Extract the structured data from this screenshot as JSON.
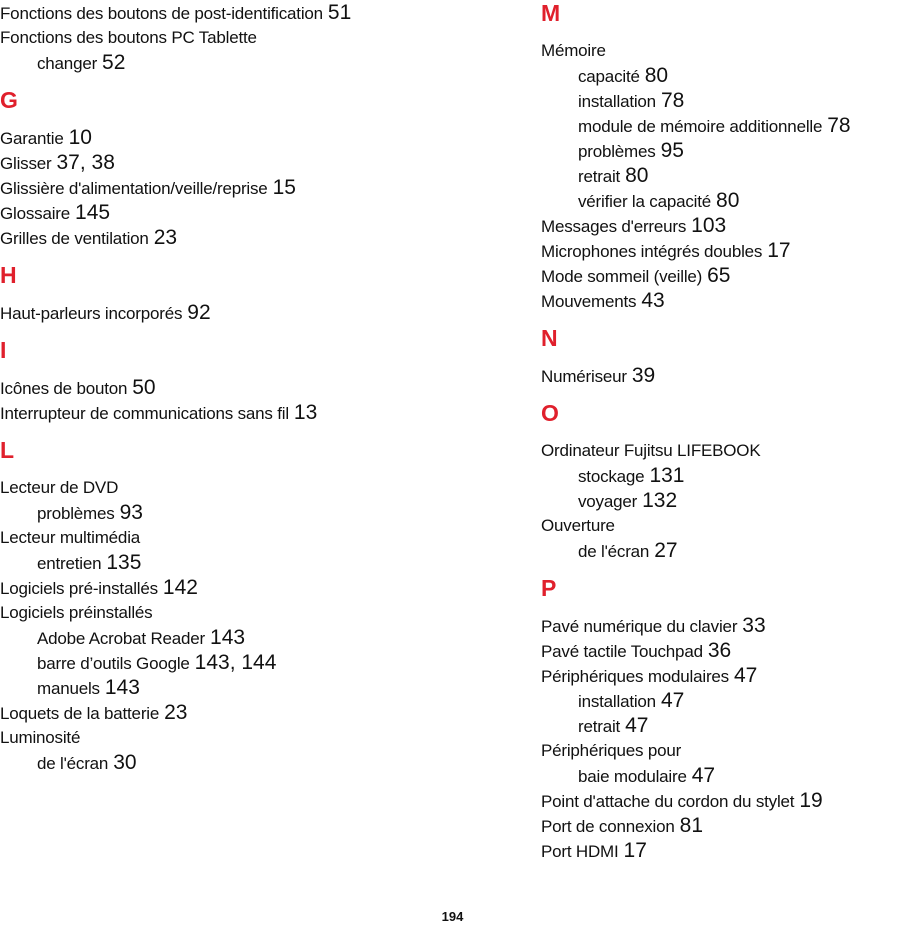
{
  "left_column": [
    {
      "type": "entry",
      "level": 0,
      "text": "Fonctions des boutons de post-identification",
      "pages": "51"
    },
    {
      "type": "entry",
      "level": 0,
      "text": "Fonctions des boutons PC Tablette",
      "pages": ""
    },
    {
      "type": "entry",
      "level": 1,
      "text": "changer",
      "pages": "52"
    },
    {
      "type": "letter",
      "text": "G"
    },
    {
      "type": "entry",
      "level": 0,
      "text": "Garantie",
      "pages": "10"
    },
    {
      "type": "entry",
      "level": 0,
      "text": "Glisser",
      "pages": "37, 38"
    },
    {
      "type": "entry",
      "level": 0,
      "text": "Glissière d'alimentation/veille/reprise",
      "pages": "15"
    },
    {
      "type": "entry",
      "level": 0,
      "text": "Glossaire",
      "pages": "145"
    },
    {
      "type": "entry",
      "level": 0,
      "text": "Grilles de ventilation",
      "pages": "23"
    },
    {
      "type": "letter",
      "text": "H"
    },
    {
      "type": "entry",
      "level": 0,
      "text": "Haut-parleurs incorporés",
      "pages": "92"
    },
    {
      "type": "letter",
      "text": "I"
    },
    {
      "type": "entry",
      "level": 0,
      "text": "Icônes de bouton",
      "pages": "50"
    },
    {
      "type": "entry",
      "level": 0,
      "text": "Interrupteur de communications sans fil",
      "pages": "13"
    },
    {
      "type": "letter",
      "text": "L"
    },
    {
      "type": "entry",
      "level": 0,
      "text": "Lecteur de DVD",
      "pages": ""
    },
    {
      "type": "entry",
      "level": 1,
      "text": "problèmes",
      "pages": "93"
    },
    {
      "type": "entry",
      "level": 0,
      "text": "Lecteur multimédia",
      "pages": ""
    },
    {
      "type": "entry",
      "level": 1,
      "text": "entretien",
      "pages": "135"
    },
    {
      "type": "entry",
      "level": 0,
      "text": "Logiciels pré-installés",
      "pages": "142"
    },
    {
      "type": "entry",
      "level": 0,
      "text": "Logiciels préinstallés",
      "pages": ""
    },
    {
      "type": "entry",
      "level": 1,
      "text": "Adobe Acrobat Reader",
      "pages": "143"
    },
    {
      "type": "entry",
      "level": 1,
      "text": "barre d’outils Google",
      "pages": "143, 144"
    },
    {
      "type": "entry",
      "level": 1,
      "text": "manuels",
      "pages": "143"
    },
    {
      "type": "entry",
      "level": 0,
      "text": "Loquets de la batterie",
      "pages": "23"
    },
    {
      "type": "entry",
      "level": 0,
      "text": "Luminosité",
      "pages": ""
    },
    {
      "type": "entry",
      "level": 1,
      "text": "de l'écran",
      "pages": "30"
    }
  ],
  "right_column": [
    {
      "type": "letter",
      "text": "M"
    },
    {
      "type": "entry",
      "level": 0,
      "text": "Mémoire",
      "pages": ""
    },
    {
      "type": "entry",
      "level": 1,
      "text": "capacité",
      "pages": "80"
    },
    {
      "type": "entry",
      "level": 1,
      "text": "installation",
      "pages": "78"
    },
    {
      "type": "entry",
      "level": 1,
      "text": "module de mémoire additionnelle",
      "pages": "78"
    },
    {
      "type": "entry",
      "level": 1,
      "text": "problèmes",
      "pages": "95"
    },
    {
      "type": "entry",
      "level": 1,
      "text": "retrait",
      "pages": "80"
    },
    {
      "type": "entry",
      "level": 1,
      "text": "vérifier la capacité",
      "pages": "80"
    },
    {
      "type": "entry",
      "level": 0,
      "text": "Messages d'erreurs",
      "pages": "103"
    },
    {
      "type": "entry",
      "level": 0,
      "text": "Microphones intégrés doubles",
      "pages": "17"
    },
    {
      "type": "entry",
      "level": 0,
      "text": "Mode sommeil (veille)",
      "pages": "65"
    },
    {
      "type": "entry",
      "level": 0,
      "text": "Mouvements",
      "pages": "43"
    },
    {
      "type": "letter",
      "text": "N"
    },
    {
      "type": "entry",
      "level": 0,
      "text": "Numériseur",
      "pages": "39"
    },
    {
      "type": "letter",
      "text": "O"
    },
    {
      "type": "entry",
      "level": 0,
      "text": "Ordinateur Fujitsu LIFEBOOK",
      "pages": ""
    },
    {
      "type": "entry",
      "level": 1,
      "text": "stockage",
      "pages": "131"
    },
    {
      "type": "entry",
      "level": 1,
      "text": "voyager",
      "pages": "132"
    },
    {
      "type": "entry",
      "level": 0,
      "text": "Ouverture",
      "pages": ""
    },
    {
      "type": "entry",
      "level": 1,
      "text": "de l'écran",
      "pages": "27"
    },
    {
      "type": "letter",
      "text": "P"
    },
    {
      "type": "entry",
      "level": 0,
      "text": "Pavé numérique du clavier",
      "pages": "33"
    },
    {
      "type": "entry",
      "level": 0,
      "text": "Pavé tactile Touchpad",
      "pages": "36"
    },
    {
      "type": "entry",
      "level": 0,
      "text": "Périphériques modulaires",
      "pages": "47"
    },
    {
      "type": "entry",
      "level": 1,
      "text": "installation",
      "pages": "47"
    },
    {
      "type": "entry",
      "level": 1,
      "text": "retrait",
      "pages": "47"
    },
    {
      "type": "entry",
      "level": 0,
      "text": "Périphériques pour",
      "pages": ""
    },
    {
      "type": "entry",
      "level": 1,
      "text": "baie modulaire",
      "pages": "47"
    },
    {
      "type": "entry",
      "level": 0,
      "text": "Point d'attache du cordon du stylet",
      "pages": "19"
    },
    {
      "type": "entry",
      "level": 0,
      "text": "Port de connexion",
      "pages": "81"
    },
    {
      "type": "entry",
      "level": 0,
      "text": "Port HDMI",
      "pages": "17"
    }
  ],
  "page_number": "194",
  "colors": {
    "letter_heading": "#e0202c",
    "text": "#111111"
  }
}
